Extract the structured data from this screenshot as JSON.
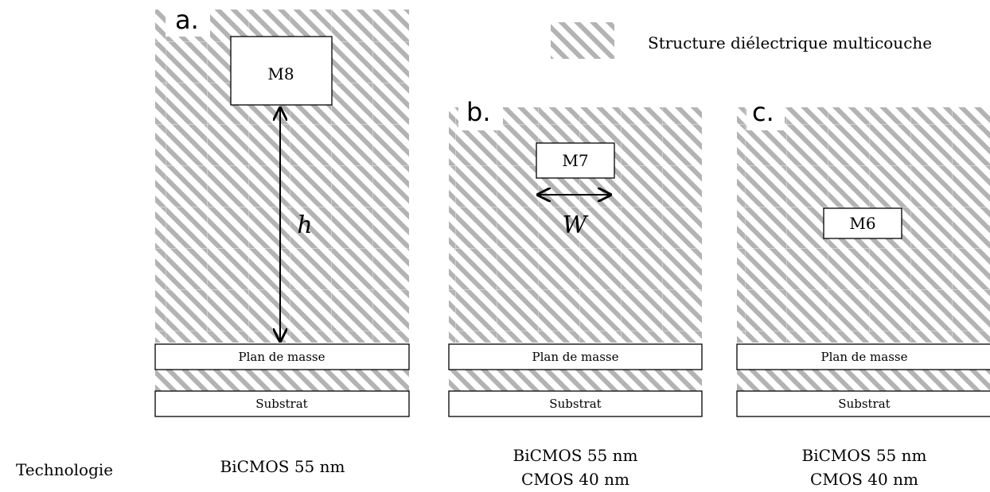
{
  "legend": {
    "label": "Structure diélectrique multicouche",
    "swatch": "hatched-pattern"
  },
  "colors": {
    "hatch_stripe": "#b3b3b3",
    "hatch_background": "#ffffff",
    "grid_line": "#dadada",
    "outline": "#000000"
  },
  "panels": [
    {
      "letter": "a.",
      "metal": "M8",
      "ground_plane": "Plan de masse",
      "substrate": "Substrat",
      "dimension": "h",
      "technology": [
        "BiCMOS 55 nm"
      ]
    },
    {
      "letter": "b.",
      "metal": "M7",
      "ground_plane": "Plan de masse",
      "substrate": "Substrat",
      "dimension": "W",
      "technology": [
        "BiCMOS 55 nm",
        "CMOS 40 nm"
      ]
    },
    {
      "letter": "c.",
      "metal": "M6",
      "ground_plane": "Plan de masse",
      "substrate": "Substrat",
      "technology": [
        "BiCMOS 55 nm",
        "CMOS 40 nm"
      ]
    }
  ],
  "row_label": "Technologie"
}
